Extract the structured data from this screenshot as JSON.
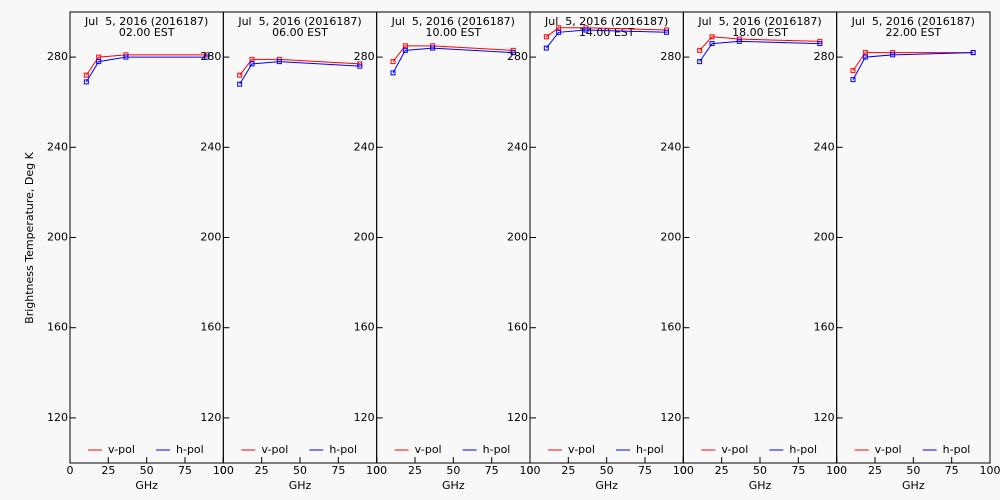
{
  "chart_data": [
    {
      "type": "line",
      "title": "Jul  5, 2016 (2016187)",
      "subtitle": "02.00 EST",
      "ylabel": "Brightness Temperature, Deg K",
      "xlabel": "GHz",
      "xlim": [
        0,
        100
      ],
      "xticks": [
        0,
        25,
        50,
        75,
        100
      ],
      "ylim": [
        100,
        300
      ],
      "yticks": [
        120,
        160,
        200,
        240,
        280
      ],
      "series": [
        {
          "name": "v-pol",
          "color": "#ff0000",
          "x": [
            10.65,
            18.7,
            36.5,
            89
          ],
          "values": [
            272,
            280,
            281,
            281
          ]
        },
        {
          "name": "h-pol",
          "color": "#0000ff",
          "x": [
            10.65,
            18.7,
            36.5,
            89
          ],
          "values": [
            269,
            278,
            280,
            280
          ]
        }
      ]
    },
    {
      "type": "line",
      "title": "Jul  5, 2016 (2016187)",
      "subtitle": "06.00 EST",
      "xlabel": "GHz",
      "xlim": [
        0,
        100
      ],
      "xticks": [
        0,
        25,
        50,
        75,
        100
      ],
      "ylim": [
        100,
        300
      ],
      "yticks": [
        120,
        160,
        200,
        240,
        280
      ],
      "series": [
        {
          "name": "v-pol",
          "color": "#ff0000",
          "x": [
            10.65,
            18.7,
            36.5,
            89
          ],
          "values": [
            272,
            279,
            279,
            277
          ]
        },
        {
          "name": "h-pol",
          "color": "#0000ff",
          "x": [
            10.65,
            18.7,
            36.5,
            89
          ],
          "values": [
            268,
            277,
            278,
            276
          ]
        }
      ]
    },
    {
      "type": "line",
      "title": "Jul  5, 2016 (2016187)",
      "subtitle": "10.00 EST",
      "xlabel": "GHz",
      "xlim": [
        0,
        100
      ],
      "xticks": [
        0,
        25,
        50,
        75,
        100
      ],
      "ylim": [
        100,
        300
      ],
      "yticks": [
        120,
        160,
        200,
        240,
        280
      ],
      "series": [
        {
          "name": "v-pol",
          "color": "#ff0000",
          "x": [
            10.65,
            18.7,
            36.5,
            89
          ],
          "values": [
            278,
            285,
            285,
            283
          ]
        },
        {
          "name": "h-pol",
          "color": "#0000ff",
          "x": [
            10.65,
            18.7,
            36.5,
            89
          ],
          "values": [
            273,
            283,
            284,
            282
          ]
        }
      ]
    },
    {
      "type": "line",
      "title": "Jul  5, 2016 (2016187)",
      "subtitle": "14.00 EST",
      "xlabel": "GHz",
      "xlim": [
        0,
        100
      ],
      "xticks": [
        0,
        25,
        50,
        75,
        100
      ],
      "ylim": [
        100,
        300
      ],
      "yticks": [
        120,
        160,
        200,
        240,
        280
      ],
      "series": [
        {
          "name": "v-pol",
          "color": "#ff0000",
          "x": [
            10.65,
            18.7,
            36.5,
            89
          ],
          "values": [
            289,
            293,
            293,
            292
          ]
        },
        {
          "name": "h-pol",
          "color": "#0000ff",
          "x": [
            10.65,
            18.7,
            36.5,
            89
          ],
          "values": [
            284,
            291,
            292,
            291
          ]
        }
      ]
    },
    {
      "type": "line",
      "title": "Jul  5, 2016 (2016187)",
      "subtitle": "18.00 EST",
      "xlabel": "GHz",
      "xlim": [
        0,
        100
      ],
      "xticks": [
        0,
        25,
        50,
        75,
        100
      ],
      "ylim": [
        100,
        300
      ],
      "yticks": [
        120,
        160,
        200,
        240,
        280
      ],
      "series": [
        {
          "name": "v-pol",
          "color": "#ff0000",
          "x": [
            10.65,
            18.7,
            36.5,
            89
          ],
          "values": [
            283,
            289,
            288,
            287
          ]
        },
        {
          "name": "h-pol",
          "color": "#0000ff",
          "x": [
            10.65,
            18.7,
            36.5,
            89
          ],
          "values": [
            278,
            286,
            287,
            286
          ]
        }
      ]
    },
    {
      "type": "line",
      "title": "Jul  5, 2016 (2016187)",
      "subtitle": "22.00 EST",
      "xlabel": "GHz",
      "xlim": [
        0,
        100
      ],
      "xticks": [
        0,
        25,
        50,
        75,
        100
      ],
      "ylim": [
        100,
        300
      ],
      "yticks": [
        120,
        160,
        200,
        240,
        280
      ],
      "series": [
        {
          "name": "v-pol",
          "color": "#ff0000",
          "x": [
            10.65,
            18.7,
            36.5,
            89
          ],
          "values": [
            274,
            282,
            282,
            282
          ]
        },
        {
          "name": "h-pol",
          "color": "#0000ff",
          "x": [
            10.65,
            18.7,
            36.5,
            89
          ],
          "values": [
            270,
            280,
            281,
            282
          ]
        }
      ]
    }
  ]
}
